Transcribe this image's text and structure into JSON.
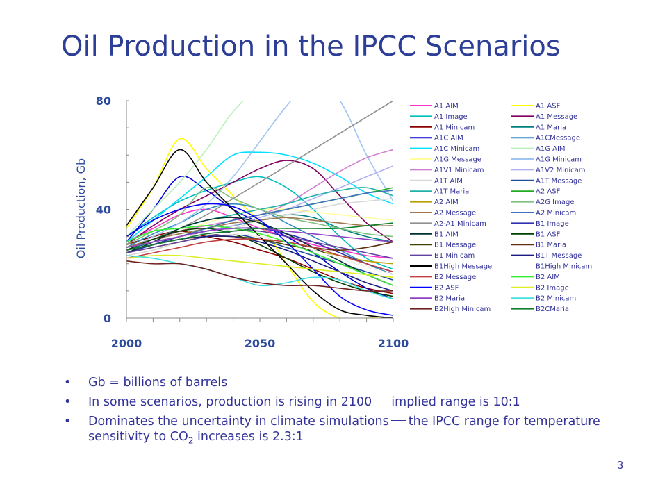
{
  "slide": {
    "title": "Oil Production in the IPCC Scenarios",
    "page_number": "3",
    "bullets": {
      "b1": "Gb = billions of barrels",
      "b2a": "In some scenarios, production is rising in 2100",
      "b2b": "implied range is 10:1",
      "b3a": "Dominates the uncertainty in climate simulations",
      "b3b": "the IPCC range for temperature sensitivity to CO",
      "b3sub": "2",
      "b3c": " increases is 2.3:1",
      "marker": "•"
    }
  },
  "chart_data": {
    "type": "line",
    "title": "",
    "xlabel": "",
    "ylabel": "Oil Production, Gb",
    "xlim": [
      2000,
      2100
    ],
    "ylim": [
      0,
      80
    ],
    "xticks": [
      "2000",
      "2050",
      "2100"
    ],
    "yticks": [
      "0",
      "40",
      "80"
    ],
    "grid": false,
    "legend_position": "right",
    "x": [
      2000,
      2010,
      2020,
      2030,
      2040,
      2050,
      2060,
      2070,
      2080,
      2090,
      2100
    ],
    "series": [
      {
        "name": "A1 AIM",
        "color": "#ff33cc",
        "values": [
          28,
          33,
          38,
          40,
          37,
          33,
          30,
          27,
          25,
          23,
          22
        ]
      },
      {
        "name": "A1 ASF",
        "color": "#ffff00",
        "values": [
          33,
          48,
          66,
          55,
          45,
          35,
          20,
          6,
          0,
          0,
          0
        ]
      },
      {
        "name": "A1 Image",
        "color": "#00bfbf",
        "values": [
          30,
          37,
          43,
          47,
          50,
          52,
          48,
          40,
          30,
          22,
          18
        ]
      },
      {
        "name": "A1 Message",
        "color": "#800060",
        "values": [
          27,
          34,
          40,
          45,
          50,
          55,
          58,
          55,
          45,
          35,
          28
        ]
      },
      {
        "name": "A1 Minicam",
        "color": "#8b0000",
        "values": [
          27,
          30,
          32,
          30,
          28,
          25,
          22,
          18,
          14,
          11,
          9
        ]
      },
      {
        "name": "A1 Maria",
        "color": "#008080",
        "values": [
          25,
          28,
          30,
          32,
          34,
          36,
          38,
          37,
          33,
          30,
          28
        ]
      },
      {
        "name": "A1C AIM",
        "color": "#0000cd",
        "values": [
          28,
          40,
          52,
          47,
          40,
          35,
          30,
          24,
          17,
          11,
          7
        ]
      },
      {
        "name": "A1CMessage",
        "color": "#2e8bc0",
        "values": [
          26,
          31,
          35,
          40,
          42,
          40,
          35,
          30,
          25,
          20,
          16
        ]
      },
      {
        "name": "A1C Minicam",
        "color": "#00e0ff",
        "values": [
          28,
          36,
          44,
          52,
          60,
          61,
          60,
          57,
          52,
          46,
          42
        ]
      },
      {
        "name": "A1G AIM",
        "color": "#b8f0b8",
        "values": [
          30,
          40,
          50,
          62,
          76,
          85,
          90,
          92,
          95,
          97,
          100
        ]
      },
      {
        "name": "A1G Message",
        "color": "#ffffa0",
        "values": [
          24,
          28,
          32,
          35,
          38,
          40,
          40,
          39,
          38,
          37,
          36
        ]
      },
      {
        "name": "A1G Minicam",
        "color": "#a0c4f0",
        "values": [
          25,
          30,
          35,
          42,
          52,
          65,
          78,
          88,
          80,
          60,
          43
        ]
      },
      {
        "name": "A1V1 Minicam",
        "color": "#d080d0",
        "values": [
          24,
          28,
          32,
          34,
          36,
          38,
          42,
          48,
          54,
          59,
          62
        ]
      },
      {
        "name": "A1V2 Minicam",
        "color": "#b0b0f0",
        "values": [
          24,
          27,
          30,
          32,
          34,
          37,
          40,
          44,
          48,
          52,
          56
        ]
      },
      {
        "name": "A1T AIM",
        "color": "#d8d8d8",
        "values": [
          23,
          25,
          28,
          30,
          33,
          36,
          38,
          40,
          42,
          43,
          44
        ]
      },
      {
        "name": "A1T Message",
        "color": "#1f4e9a",
        "values": [
          24,
          27,
          30,
          31,
          31,
          29,
          26,
          23,
          20,
          17,
          14
        ]
      },
      {
        "name": "A1T Maria",
        "color": "#20b2aa",
        "values": [
          26,
          29,
          33,
          36,
          38,
          40,
          42,
          45,
          47,
          48,
          45
        ]
      },
      {
        "name": "A2 ASF",
        "color": "#22aa22",
        "values": [
          24,
          27,
          30,
          33,
          36,
          38,
          40,
          42,
          44,
          46,
          48
        ]
      },
      {
        "name": "A2 AIM",
        "color": "#b8a000",
        "values": [
          24,
          26,
          28,
          30,
          30,
          29,
          27,
          25,
          23,
          21,
          20
        ]
      },
      {
        "name": "A2G Image",
        "color": "#80c080",
        "values": [
          27,
          32,
          38,
          48,
          44,
          40,
          37,
          35,
          33,
          31,
          30
        ]
      },
      {
        "name": "A2 Message",
        "color": "#a07850",
        "values": [
          26,
          29,
          31,
          33,
          35,
          36,
          37,
          36,
          35,
          34,
          34
        ]
      },
      {
        "name": "A2 Minicam",
        "color": "#4070c0",
        "values": [
          26,
          28,
          30,
          33,
          36,
          38,
          40,
          42,
          44,
          46,
          47
        ]
      },
      {
        "name": "A2-A1 Minicam",
        "color": "#909090",
        "values": [
          25,
          29,
          33,
          38,
          44,
          50,
          56,
          62,
          68,
          74,
          80
        ]
      },
      {
        "name": "B1 Image",
        "color": "#3030b0",
        "values": [
          24,
          27,
          30,
          32,
          33,
          33,
          31,
          28,
          24,
          20,
          17
        ]
      },
      {
        "name": "B1 AIM",
        "color": "#003030",
        "values": [
          24,
          28,
          33,
          36,
          37,
          35,
          31,
          26,
          21,
          16,
          12
        ]
      },
      {
        "name": "B1 ASF",
        "color": "#004000",
        "values": [
          25,
          29,
          32,
          33,
          31,
          27,
          22,
          17,
          13,
          10,
          8
        ]
      },
      {
        "name": "B1 Message",
        "color": "#404000",
        "values": [
          25,
          27,
          29,
          30,
          30,
          29,
          27,
          25,
          22,
          19,
          16
        ]
      },
      {
        "name": "B1 Maria",
        "color": "#603010",
        "values": [
          26,
          28,
          30,
          31,
          31,
          30,
          28,
          26,
          25,
          26,
          28
        ]
      },
      {
        "name": "B1 Minicam",
        "color": "#6040a0",
        "values": [
          24,
          26,
          28,
          30,
          32,
          32,
          30,
          28,
          26,
          24,
          22
        ]
      },
      {
        "name": "B1T Message",
        "color": "#1a1a80",
        "values": [
          25,
          27,
          29,
          30,
          30,
          28,
          25,
          21,
          17,
          13,
          10
        ]
      },
      {
        "name": "B1High Message",
        "color": "#000000",
        "values": [
          34,
          48,
          62,
          50,
          40,
          30,
          20,
          10,
          3,
          1,
          0
        ]
      },
      {
        "name": "B1High Minicam",
        "color": "#ffffff",
        "values": [
          26,
          28,
          30,
          31,
          31,
          30,
          28,
          25,
          22,
          19,
          16
        ]
      },
      {
        "name": "B2 Message",
        "color": "#c04040",
        "values": [
          22,
          24,
          26,
          28,
          29,
          29,
          28,
          26,
          23,
          20,
          17
        ]
      },
      {
        "name": "B2 AIM",
        "color": "#33ee33",
        "values": [
          28,
          32,
          33,
          34,
          33,
          31,
          28,
          24,
          20,
          16,
          12
        ]
      },
      {
        "name": "B2 ASF",
        "color": "#0000ff",
        "values": [
          30,
          36,
          40,
          42,
          41,
          36,
          28,
          18,
          8,
          3,
          1
        ]
      },
      {
        "name": "B2 Image",
        "color": "#ddee22",
        "values": [
          22,
          23,
          23,
          22,
          21,
          20,
          19,
          18,
          17,
          16,
          15
        ]
      },
      {
        "name": "B2 Maria",
        "color": "#9040c0",
        "values": [
          26,
          28,
          30,
          32,
          33,
          33,
          32,
          31,
          30,
          29,
          28
        ]
      },
      {
        "name": "B2 Minicam",
        "color": "#40e0e0",
        "values": [
          23,
          22,
          20,
          18,
          15,
          12,
          13,
          15,
          14,
          10,
          7
        ]
      },
      {
        "name": "B2High Minicam",
        "color": "#702020",
        "values": [
          21,
          20,
          20,
          18,
          15,
          13,
          12,
          12,
          11,
          10,
          10
        ]
      },
      {
        "name": "B2CMaria",
        "color": "#108030",
        "values": [
          25,
          27,
          29,
          31,
          32,
          33,
          33,
          33,
          33,
          34,
          35
        ]
      }
    ]
  }
}
